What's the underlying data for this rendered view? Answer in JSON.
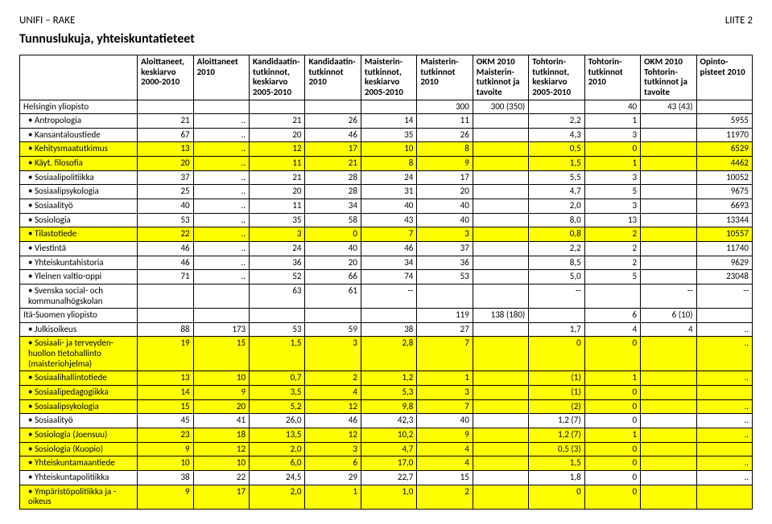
{
  "header": {
    "left": "UNIFI – RAKE",
    "right": "LIITE 2",
    "title": "Tunnuslukuja, yhteiskuntatieteet"
  },
  "columns": [
    "",
    "Aloittaneet, keskiarvo 2000-2010",
    "Aloittaneet 2010",
    "Kandidaatin-tutkinnot, keskiarvo 2005-2010",
    "Kandidaatin-tutkinnot 2010",
    "Maisterin-tutkinnot, keskiarvo 2005-2010",
    "Maisterin-tutkinnot 2010",
    "OKM 2010 Maisterin-tutkinnot ja tavoite",
    "Tohtorin-tutkinnot, keskiarvo 2005-2010",
    "Tohtorin-tutkinnot 2010",
    "OKM 2010 Tohtorin-tutkinnot ja tavoite",
    "Opinto-pisteet 2010"
  ],
  "highlight_color": "#ffff00",
  "rows": [
    {
      "label": "Helsingin yliopisto",
      "section": true,
      "cells": [
        "",
        "",
        "",
        "",
        "",
        "300",
        "300 (350)",
        "",
        "40",
        "43 (43)",
        ""
      ]
    },
    {
      "label": "Antropologia",
      "bullet": true,
      "cells": [
        "21",
        "..",
        "21",
        "26",
        "14",
        "11",
        "",
        "2,2",
        "1",
        "",
        "5955"
      ]
    },
    {
      "label": "Kansantaloustiede",
      "bullet": true,
      "cells": [
        "67",
        "..",
        "20",
        "46",
        "35",
        "26",
        "",
        "4,3",
        "3",
        "",
        "11970"
      ]
    },
    {
      "label": "Kehitysmaatutkimus",
      "bullet": true,
      "hl": true,
      "cells": [
        "13",
        "..",
        "12",
        "17",
        "10",
        "8",
        "",
        "0,5",
        "0",
        "",
        "6529"
      ]
    },
    {
      "label": "Käyt. filosofia",
      "bullet": true,
      "hl": true,
      "cells": [
        "20",
        "..",
        "11",
        "21",
        "8",
        "9",
        "",
        "1,5",
        "1",
        "",
        "4462"
      ]
    },
    {
      "label": "Sosiaalipolitiikka",
      "bullet": true,
      "cells": [
        "37",
        "..",
        "21",
        "28",
        "24",
        "17",
        "",
        "5,5",
        "3",
        "",
        "10052"
      ]
    },
    {
      "label": "Sosiaalipsykologia",
      "bullet": true,
      "cells": [
        "25",
        "..",
        "20",
        "28",
        "31",
        "20",
        "",
        "4,7",
        "5",
        "",
        "9675"
      ]
    },
    {
      "label": "Sosiaalityö",
      "bullet": true,
      "cells": [
        "40",
        "..",
        "11",
        "34",
        "40",
        "40",
        "",
        "2,0",
        "3",
        "",
        "6693"
      ]
    },
    {
      "label": "Sosiologia",
      "bullet": true,
      "cells": [
        "53",
        "..",
        "35",
        "58",
        "43",
        "40",
        "",
        "8,0",
        "13",
        "",
        "13344"
      ]
    },
    {
      "label": "Tilastotiede",
      "bullet": true,
      "hl": true,
      "cells": [
        "22",
        "..",
        "3",
        "0",
        "7",
        "3",
        "",
        "0,8",
        "2",
        "",
        "10557"
      ]
    },
    {
      "label": "Viestintä",
      "bullet": true,
      "cells": [
        "46",
        "..",
        "24",
        "40",
        "46",
        "37",
        "",
        "2,2",
        "2",
        "",
        "11740"
      ]
    },
    {
      "label": "Yhteiskuntahistoria",
      "bullet": true,
      "cells": [
        "46",
        "..",
        "36",
        "20",
        "34",
        "36",
        "",
        "8,5",
        "2",
        "",
        "9629"
      ]
    },
    {
      "label": "Yleinen valtio-oppi",
      "bullet": true,
      "cells": [
        "71",
        "..",
        "52",
        "66",
        "74",
        "53",
        "",
        "5,0",
        "5",
        "",
        "23048"
      ]
    },
    {
      "label": "Svenska social- och kommunalhögskolan",
      "bullet": true,
      "cells": [
        "",
        "",
        "63",
        "61",
        "--",
        "",
        "",
        "--",
        "",
        "--",
        "--"
      ]
    },
    {
      "label": "Itä-Suomen yliopisto",
      "section": true,
      "cells": [
        "",
        "",
        "",
        "",
        "",
        "119",
        "138 (180)",
        "",
        "6",
        "6 (10)",
        ""
      ]
    },
    {
      "label": "Julkisoikeus",
      "bullet": true,
      "cells": [
        "88",
        "173",
        "53",
        "59",
        "38",
        "27",
        "",
        "1,7",
        "4",
        "4",
        ".."
      ]
    },
    {
      "label": "Sosiaali- ja terveyden-huollon tietohallinto (maisteriohjelma)",
      "bullet": true,
      "hl": true,
      "cells": [
        "19",
        "15",
        "1,5",
        "3",
        "2,8",
        "7",
        "",
        "0",
        "0",
        "",
        ".."
      ]
    },
    {
      "label": "Sosiaalihallintotiede",
      "bullet": true,
      "hl": true,
      "cells": [
        "13",
        "10",
        "0,7",
        "2",
        "1,2",
        "1",
        "",
        "(1)",
        "1",
        "",
        ".."
      ]
    },
    {
      "label": "Sosiaalipedagogiikka",
      "bullet": true,
      "hl": true,
      "cells": [
        "14",
        "9",
        "3,5",
        "4",
        "5,3",
        "3",
        "",
        "(1)",
        "0",
        "",
        ""
      ]
    },
    {
      "label": "Sosiaalipsykologia",
      "bullet": true,
      "hl": true,
      "cells": [
        "15",
        "20",
        "5,2",
        "12",
        "9,8",
        "7",
        "",
        "(2)",
        "0",
        "",
        ".."
      ]
    },
    {
      "label": "Sosiaalityö",
      "bullet": true,
      "cells": [
        "45",
        "41",
        "26,0",
        "46",
        "42,3",
        "40",
        "",
        "1,2 (7)",
        "0",
        "",
        ".."
      ]
    },
    {
      "label": "Sosiologia (Joensuu)",
      "bullet": true,
      "hl": true,
      "cells": [
        "23",
        "18",
        "13,5",
        "12",
        "10,2",
        "9",
        "",
        "1,2 (7)",
        "1",
        "",
        ".."
      ]
    },
    {
      "label": "Sosiologia (Kuopio)",
      "bullet": true,
      "hl": true,
      "cells": [
        "9",
        "12",
        "2,0",
        "3",
        "4,7",
        "4",
        "",
        "0,5 (3)",
        "0",
        "",
        ""
      ]
    },
    {
      "label": "Yhteiskuntamaantiede",
      "bullet": true,
      "hl": true,
      "cells": [
        "10",
        "10",
        "6,0",
        "6",
        "17,0",
        "4",
        "",
        "1,5",
        "0",
        "",
        ".."
      ]
    },
    {
      "label": "Yhteiskuntapolitiikka",
      "bullet": true,
      "cells": [
        "38",
        "22",
        "24,5",
        "29",
        "22,7",
        "15",
        "",
        "1,8",
        "0",
        "",
        ".."
      ]
    },
    {
      "label": "Ympäristöpolitiikka ja -oikeus",
      "bullet": true,
      "hl": true,
      "cells": [
        "9",
        "17",
        "2,0",
        "1",
        "1,0",
        "2",
        "",
        "0",
        "0",
        "",
        ""
      ]
    }
  ]
}
